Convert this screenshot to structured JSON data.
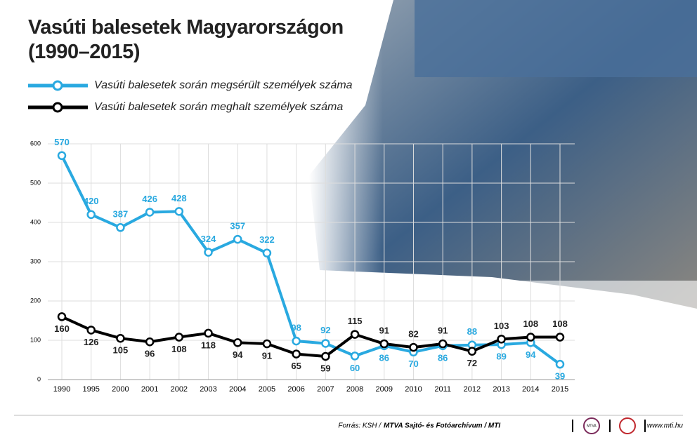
{
  "chart_data": {
    "type": "line",
    "title": "Vasúti balesetek Magyarországon (1990–2015)",
    "categories": [
      "1990",
      "1995",
      "2000",
      "2001",
      "2002",
      "2003",
      "2004",
      "2005",
      "2006",
      "2007",
      "2008",
      "2009",
      "2010",
      "2011",
      "2012",
      "2013",
      "2014",
      "2015"
    ],
    "series": [
      {
        "name": "Vasúti balesetek során megsérült személyek száma",
        "color": "#29a9e0",
        "values": [
          570,
          420,
          387,
          426,
          428,
          324,
          357,
          322,
          98,
          92,
          60,
          86,
          70,
          86,
          88,
          89,
          94,
          39
        ]
      },
      {
        "name": "Vasúti balesetek során meghalt személyek száma",
        "color": "#000000",
        "values": [
          160,
          126,
          105,
          96,
          108,
          118,
          94,
          91,
          65,
          59,
          115,
          91,
          82,
          91,
          72,
          103,
          108,
          108
        ]
      }
    ],
    "ylim": [
      0,
      600
    ],
    "yticks": [
      0,
      100,
      200,
      300,
      400,
      500,
      600
    ],
    "grid": true,
    "source_label": "Forrás: KSH /",
    "source_agency": "MTVA Sajtó- és Fotóarchívum / MTI",
    "logo_text": "MTVA",
    "website": "www.mti.hu"
  }
}
